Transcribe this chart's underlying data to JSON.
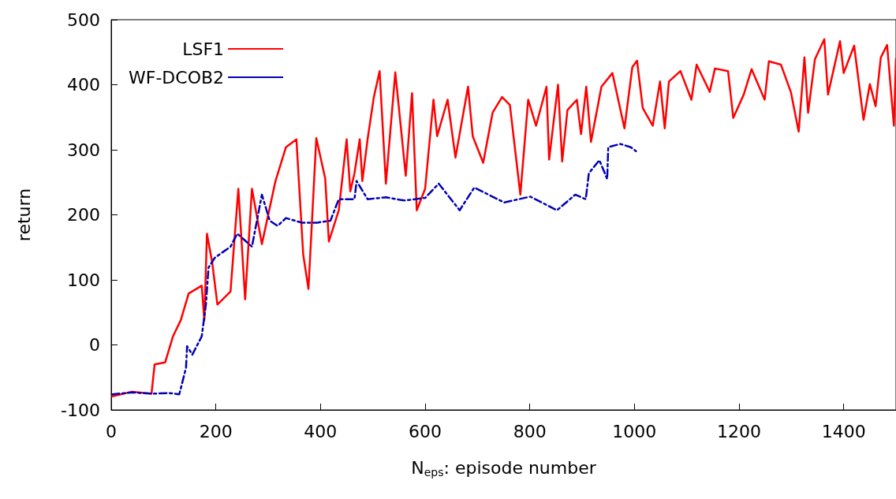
{
  "chart_data": {
    "type": "line",
    "xlabel": "N$_{eps}$: episode number",
    "ylabel": "return",
    "xlim": [
      0,
      1500
    ],
    "xticks": [
      0,
      200,
      400,
      600,
      800,
      1000,
      1200,
      1400
    ],
    "ylim": [
      -100,
      500
    ],
    "yticks": [
      -100,
      0,
      100,
      200,
      300,
      400,
      500
    ],
    "grid": false,
    "legend": "top left",
    "marker": "none",
    "series": [
      {
        "name": "LSF1",
        "color": "#ff0000",
        "line_style": "solid",
        "x": [
          2,
          40,
          77,
          83,
          103,
          118,
          133,
          148,
          173,
          178,
          183,
          193,
          203,
          228,
          243,
          256,
          269,
          288,
          314,
          334,
          354,
          367,
          377,
          392,
          409,
          416,
          435,
          450,
          457,
          465,
          475,
          480,
          490,
          502,
          513,
          525,
          543,
          563,
          575,
          584,
          600,
          616,
          623,
          643,
          658,
          682,
          691,
          711,
          729,
          747,
          762,
          782,
          797,
          812,
          832,
          837,
          854,
          862,
          872,
          890,
          898,
          908,
          917,
          937,
          958,
          981,
          996,
          1005,
          1016,
          1035,
          1049,
          1058,
          1066,
          1088,
          1109,
          1119,
          1144,
          1154,
          1179,
          1189,
          1209,
          1224,
          1249,
          1257,
          1280,
          1299,
          1314,
          1325,
          1332,
          1345,
          1363,
          1370,
          1393,
          1400,
          1420,
          1438,
          1450,
          1461,
          1471,
          1483,
          1496,
          1500
        ],
        "values": [
          -79,
          -72,
          -75,
          -30,
          -27,
          13,
          38,
          79,
          91,
          38,
          171,
          127,
          62,
          82,
          240,
          70,
          240,
          155,
          252,
          304,
          316,
          139,
          86,
          318,
          256,
          159,
          207,
          316,
          236,
          264,
          316,
          252,
          316,
          381,
          421,
          248,
          419,
          260,
          387,
          207,
          240,
          377,
          321,
          377,
          288,
          397,
          321,
          280,
          357,
          381,
          369,
          231,
          377,
          337,
          397,
          285,
          400,
          282,
          361,
          377,
          324,
          397,
          312,
          397,
          418,
          333,
          427,
          437,
          364,
          337,
          405,
          333,
          405,
          421,
          377,
          431,
          389,
          425,
          421,
          349,
          385,
          424,
          377,
          436,
          431,
          389,
          328,
          442,
          357,
          439,
          470,
          385,
          467,
          418,
          460,
          346,
          401,
          367,
          442,
          461,
          337,
          440
        ]
      },
      {
        "name": "WF-DCOB2",
        "color": "#0000b4",
        "line_style": "dashed",
        "x": [
          2,
          40,
          80,
          110,
          130,
          133,
          143,
          145,
          155,
          173,
          181,
          186,
          198,
          228,
          241,
          269,
          288,
          303,
          318,
          334,
          364,
          394,
          419,
          435,
          465,
          469,
          490,
          525,
          560,
          600,
          626,
          666,
          694,
          751,
          801,
          852,
          887,
          907,
          913,
          933,
          948,
          950,
          973,
          993,
          1003
        ],
        "values": [
          -76,
          -73,
          -75,
          -74,
          -76,
          -67,
          -35,
          -2,
          -15,
          13,
          62,
          119,
          134,
          151,
          171,
          151,
          231,
          191,
          183,
          195,
          188,
          188,
          191,
          224,
          224,
          252,
          224,
          227,
          222,
          226,
          248,
          207,
          242,
          219,
          228,
          207,
          231,
          224,
          264,
          284,
          255,
          304,
          309,
          304,
          298
        ]
      }
    ]
  }
}
